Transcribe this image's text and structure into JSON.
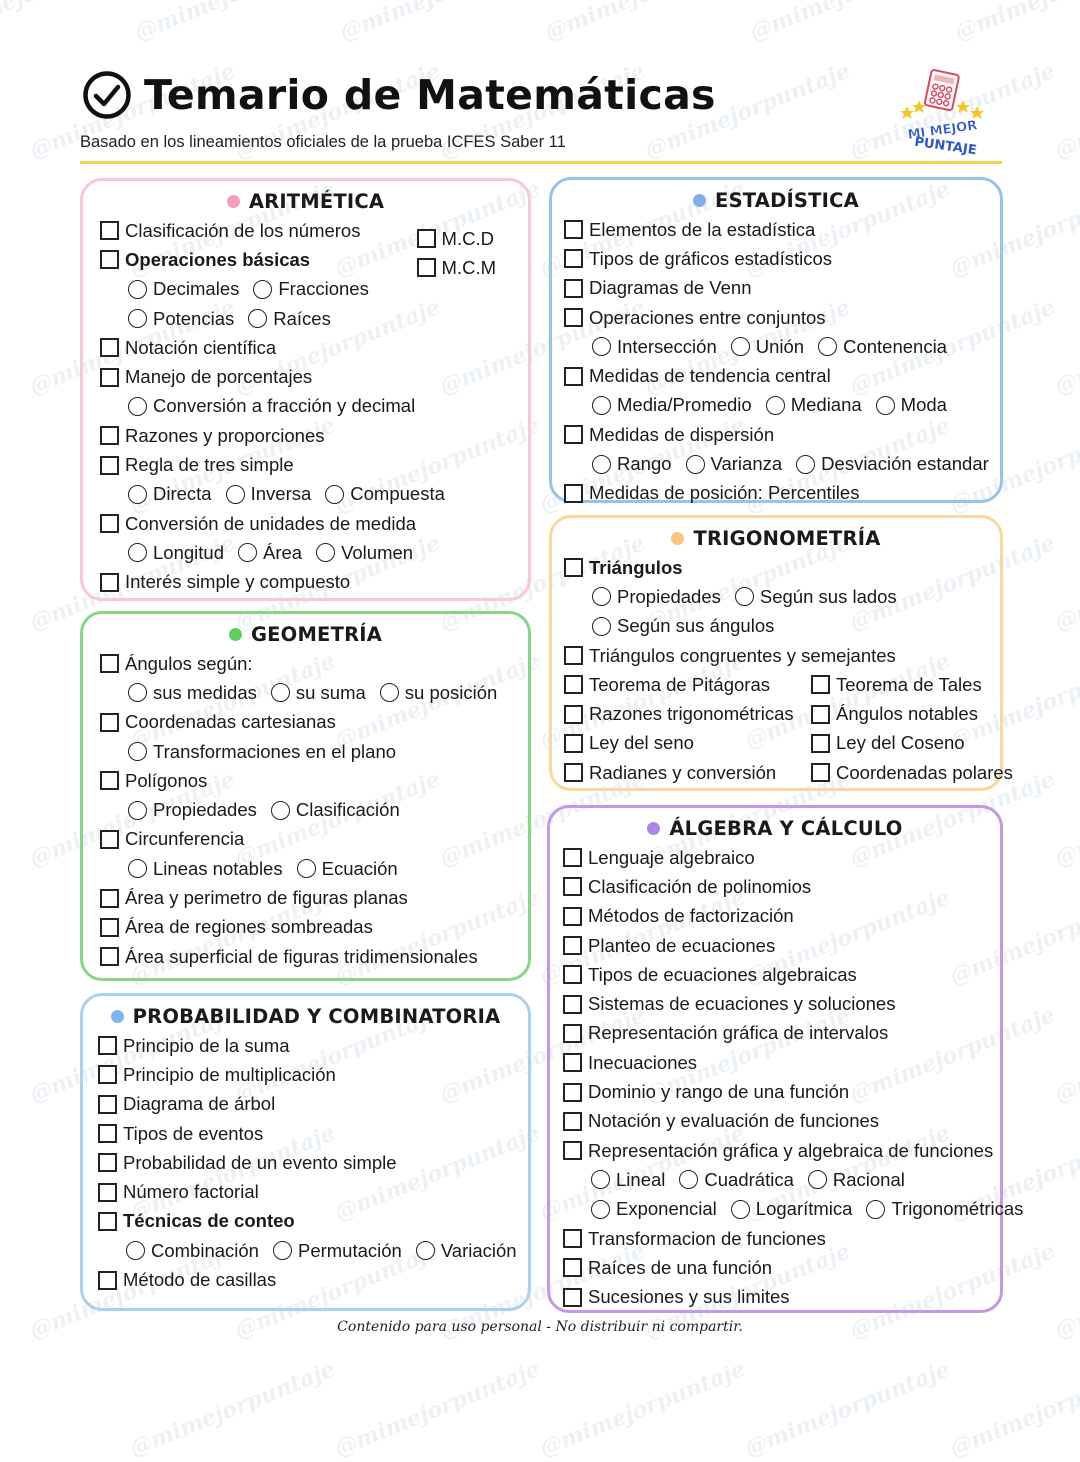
{
  "header": {
    "title": "Temario de Matemáticas",
    "subtitle": "Basado en los lineamientos oficiales de la prueba ICFES Saber 11",
    "title_icon": "check-circle-icon"
  },
  "logo": {
    "text_line1": "MI MEJOR",
    "text_line2": "PUNTAJE",
    "icon": "calculator-icon"
  },
  "watermark": "@mimejorpuntaje",
  "colors": {
    "rule": "#f1d24b",
    "aritmetica": "#f5a9bd",
    "geometria": "#6fd36f",
    "probabilidad": "#8bbdf0",
    "estadistica": "#8bbdf0",
    "trigonometria": "#f6c77a",
    "algebra": "#b48be6"
  },
  "sections": [
    {
      "id": "aritmetica",
      "title": "ARITMÉTICA",
      "border": "#f8c9d5",
      "dot": "#f5a0b8",
      "rows": [
        [
          {
            "kind": "check",
            "label": "Clasificación de los números"
          }
        ],
        [
          {
            "kind": "check",
            "label": "Operaciones básicas",
            "bold": true
          }
        ],
        [
          {
            "kind": "radio",
            "label": "Decimales"
          },
          {
            "kind": "radio",
            "label": "Fracciones"
          }
        ],
        [
          {
            "kind": "radio",
            "label": "Potencias"
          },
          {
            "kind": "radio",
            "label": "Raíces"
          }
        ],
        [
          {
            "kind": "check",
            "label": "Notación científica"
          }
        ],
        [
          {
            "kind": "check",
            "label": "Manejo de porcentajes"
          }
        ],
        [
          {
            "kind": "radio",
            "label": "Conversión a fracción y decimal"
          }
        ],
        [
          {
            "kind": "check",
            "label": "Razones y proporciones"
          }
        ],
        [
          {
            "kind": "check",
            "label": "Regla de tres simple"
          }
        ],
        [
          {
            "kind": "radio",
            "label": "Directa"
          },
          {
            "kind": "radio",
            "label": "Inversa"
          },
          {
            "kind": "radio",
            "label": "Compuesta"
          }
        ],
        [
          {
            "kind": "check",
            "label": "Conversión de unidades de medida"
          }
        ],
        [
          {
            "kind": "radio",
            "label": "Longitud"
          },
          {
            "kind": "radio",
            "label": "Área"
          },
          {
            "kind": "radio",
            "label": "Volumen"
          }
        ],
        [
          {
            "kind": "check",
            "label": "Interés simple y compuesto"
          }
        ]
      ],
      "side": [
        {
          "kind": "check",
          "label": "M.C.D"
        },
        {
          "kind": "check",
          "label": "M.C.M"
        }
      ]
    },
    {
      "id": "geometria",
      "title": "GEOMETRÍA",
      "border": "#86d686",
      "dot": "#5fcf60",
      "rows": [
        [
          {
            "kind": "check",
            "label": "Ángulos según:"
          }
        ],
        [
          {
            "kind": "radio",
            "label": "sus medidas"
          },
          {
            "kind": "radio",
            "label": "su suma"
          },
          {
            "kind": "radio",
            "label": "su posición"
          }
        ],
        [
          {
            "kind": "check",
            "label": "Coordenadas cartesianas"
          }
        ],
        [
          {
            "kind": "radio",
            "label": "Transformaciones en el plano"
          }
        ],
        [
          {
            "kind": "check",
            "label": "Polígonos"
          }
        ],
        [
          {
            "kind": "radio",
            "label": "Propiedades"
          },
          {
            "kind": "radio",
            "label": "Clasificación"
          }
        ],
        [
          {
            "kind": "check",
            "label": "Circunferencia"
          }
        ],
        [
          {
            "kind": "radio",
            "label": "Lineas notables"
          },
          {
            "kind": "radio",
            "label": "Ecuación"
          }
        ],
        [
          {
            "kind": "check",
            "label": "Área y perimetro de figuras planas"
          }
        ],
        [
          {
            "kind": "check",
            "label": "Área de regiones sombreadas"
          }
        ],
        [
          {
            "kind": "check",
            "label": "Área superficial de figuras tridimensionales"
          }
        ]
      ]
    },
    {
      "id": "probabilidad",
      "title": "PROBABILIDAD Y COMBINATORIA",
      "border": "#a9d2f2",
      "dot": "#7fb4ef",
      "rows": [
        [
          {
            "kind": "check",
            "label": "Principio de la suma"
          }
        ],
        [
          {
            "kind": "check",
            "label": "Principio de multiplicación"
          }
        ],
        [
          {
            "kind": "check",
            "label": "Diagrama de árbol"
          }
        ],
        [
          {
            "kind": "check",
            "label": "Tipos de eventos"
          }
        ],
        [
          {
            "kind": "check",
            "label": "Probabilidad de un evento simple"
          }
        ],
        [
          {
            "kind": "check",
            "label": "Número factorial"
          }
        ],
        [
          {
            "kind": "check",
            "label": "Técnicas de conteo",
            "bold": true
          }
        ],
        [
          {
            "kind": "radio",
            "label": "Combinación"
          },
          {
            "kind": "radio",
            "label": "Permutación"
          },
          {
            "kind": "radio",
            "label": "Variación"
          }
        ],
        [
          {
            "kind": "check",
            "label": "Método de casillas"
          }
        ]
      ]
    },
    {
      "id": "estadistica",
      "title": "ESTADÍSTICA",
      "border": "#97c2ec",
      "dot": "#7fb0ee",
      "rows": [
        [
          {
            "kind": "check",
            "label": "Elementos de la estadística"
          }
        ],
        [
          {
            "kind": "check",
            "label": "Tipos de gráficos estadísticos"
          }
        ],
        [
          {
            "kind": "check",
            "label": "Diagramas de Venn"
          }
        ],
        [
          {
            "kind": "check",
            "label": "Operaciones entre conjuntos"
          }
        ],
        [
          {
            "kind": "radio",
            "label": "Intersección"
          },
          {
            "kind": "radio",
            "label": "Unión"
          },
          {
            "kind": "radio",
            "label": "Contenencia"
          }
        ],
        [
          {
            "kind": "check",
            "label": "Medidas de tendencia central"
          }
        ],
        [
          {
            "kind": "radio",
            "label": "Media/Promedio"
          },
          {
            "kind": "radio",
            "label": "Mediana"
          },
          {
            "kind": "radio",
            "label": "Moda"
          }
        ],
        [
          {
            "kind": "check",
            "label": "Medidas de dispersión"
          }
        ],
        [
          {
            "kind": "radio",
            "label": "Rango"
          },
          {
            "kind": "radio",
            "label": "Varianza"
          },
          {
            "kind": "radio",
            "label": "Desviación estandar"
          }
        ],
        [
          {
            "kind": "check",
            "label": "Medidas de posición: Percentiles"
          }
        ]
      ]
    },
    {
      "id": "trigonometria",
      "title": "TRIGONOMETRÍA",
      "border": "#f8d89c",
      "dot": "#f6c77a",
      "rows": [
        [
          {
            "kind": "check",
            "label": "Triángulos",
            "bold": true
          }
        ],
        [
          {
            "kind": "radio",
            "label": "Propiedades"
          },
          {
            "kind": "radio",
            "label": "Según sus lados"
          }
        ],
        [
          {
            "kind": "radio",
            "label": "Según sus ángulos"
          }
        ],
        [
          {
            "kind": "check",
            "label": "Triángulos congruentes y semejantes"
          }
        ],
        [
          {
            "kind": "check",
            "label": "Teorema de Pitágoras"
          },
          {
            "kind": "check",
            "label": "Teorema de Tales",
            "col2": true
          }
        ],
        [
          {
            "kind": "check",
            "label": "Razones trigonométricas"
          },
          {
            "kind": "check",
            "label": "Ángulos notables",
            "col2": true
          }
        ],
        [
          {
            "kind": "check",
            "label": "Ley del seno"
          },
          {
            "kind": "check",
            "label": "Ley del Coseno",
            "col2": true
          }
        ],
        [
          {
            "kind": "check",
            "label": "Radianes y conversión"
          },
          {
            "kind": "check",
            "label": "Coordenadas polares",
            "col2": true
          }
        ]
      ]
    },
    {
      "id": "algebra",
      "title": "ÁLGEBRA Y CÁLCULO",
      "border": "#c09ae8",
      "dot": "#ad86ea",
      "rows": [
        [
          {
            "kind": "check",
            "label": "Lenguaje algebraico"
          }
        ],
        [
          {
            "kind": "check",
            "label": "Clasificación de polinomios"
          }
        ],
        [
          {
            "kind": "check",
            "label": "Métodos de factorización"
          }
        ],
        [
          {
            "kind": "check",
            "label": "Planteo de ecuaciones"
          }
        ],
        [
          {
            "kind": "check",
            "label": "Tipos de ecuaciones algebraicas"
          }
        ],
        [
          {
            "kind": "check",
            "label": "Sistemas de ecuaciones y soluciones"
          }
        ],
        [
          {
            "kind": "check",
            "label": "Representación gráfica de intervalos"
          }
        ],
        [
          {
            "kind": "check",
            "label": "Inecuaciones"
          }
        ],
        [
          {
            "kind": "check",
            "label": "Dominio y rango de una función"
          }
        ],
        [
          {
            "kind": "check",
            "label": "Notación y evaluación de funciones"
          }
        ],
        [
          {
            "kind": "check",
            "label": "Representación gráfica y algebraica de funciones"
          }
        ],
        [
          {
            "kind": "radio",
            "label": "Lineal"
          },
          {
            "kind": "radio",
            "label": "Cuadrática"
          },
          {
            "kind": "radio",
            "label": "Racional"
          }
        ],
        [
          {
            "kind": "radio",
            "label": "Exponencial"
          },
          {
            "kind": "radio",
            "label": "Logarítmica"
          },
          {
            "kind": "radio",
            "label": "Trigonométricas"
          }
        ],
        [
          {
            "kind": "check",
            "label": "Transformacion de funciones"
          }
        ],
        [
          {
            "kind": "check",
            "label": "Raíces de una función"
          }
        ],
        [
          {
            "kind": "check",
            "label": "Sucesiones y sus limites"
          }
        ]
      ]
    }
  ],
  "footer": "Contenido para uso personal - No distribuir ni compartir."
}
